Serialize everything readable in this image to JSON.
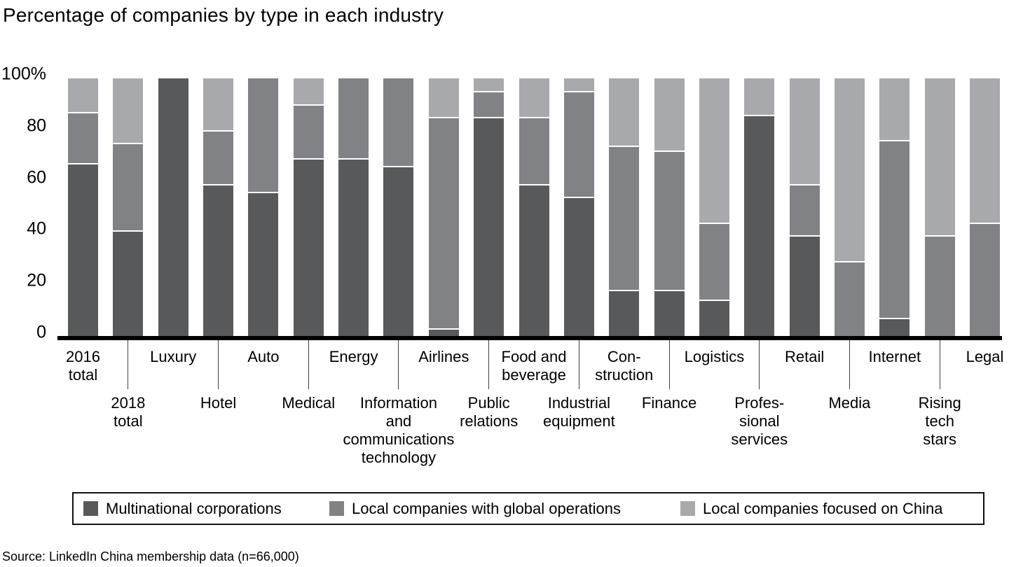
{
  "title": "Percentage of companies by type in each industry",
  "source": "Source: LinkedIn China membership data (n=66,000)",
  "y_axis": {
    "ticks": [
      100,
      80,
      60,
      40,
      20,
      0
    ],
    "tick_labels": [
      "100%",
      "80",
      "60",
      "40",
      "20",
      "0"
    ]
  },
  "legend": [
    {
      "label": "Multinational corporations",
      "color": "#58595b"
    },
    {
      "label": "Local companies with global operations",
      "color": "#808285"
    },
    {
      "label": "Local companies focused on China",
      "color": "#a7a9ac"
    }
  ],
  "chart_data": {
    "type": "bar",
    "stacked": true,
    "unit": "%",
    "title": "Percentage of companies by type in each industry",
    "ylim": [
      0,
      100
    ],
    "grid": false,
    "legend_position": "bottom",
    "categories": [
      "2016 total",
      "2018 total",
      "Luxury",
      "Hotel",
      "Auto",
      "Medical",
      "Energy",
      "Information and communications technology",
      "Airlines",
      "Public relations",
      "Food and beverage",
      "Industrial equipment",
      "Construction",
      "Finance",
      "Logistics",
      "Professional services",
      "Retail",
      "Media",
      "Internet",
      "Rising tech stars",
      "Legal"
    ],
    "category_label_lines": [
      [
        "2016",
        "total"
      ],
      [
        "2018",
        "total"
      ],
      [
        "Luxury"
      ],
      [
        "Hotel"
      ],
      [
        "Auto"
      ],
      [
        "Medical"
      ],
      [
        "Energy"
      ],
      [
        "Information",
        "and",
        "communications",
        "technology"
      ],
      [
        "Airlines"
      ],
      [
        "Public",
        "relations"
      ],
      [
        "Food and",
        "beverage"
      ],
      [
        "Industrial",
        "equipment"
      ],
      [
        "Con-",
        "struction"
      ],
      [
        "Finance"
      ],
      [
        "Logistics"
      ],
      [
        "Profes-",
        "sional",
        "services"
      ],
      [
        "Retail"
      ],
      [
        "Media"
      ],
      [
        "Internet"
      ],
      [
        "Rising",
        "tech",
        "stars"
      ],
      [
        "Legal"
      ]
    ],
    "series": [
      {
        "name": "Multinational corporations",
        "color": "#58595b",
        "values": [
          67,
          41,
          100,
          59,
          56,
          69,
          69,
          66,
          3,
          85,
          59,
          54,
          18,
          18,
          14,
          86,
          39,
          0,
          7,
          0,
          0
        ]
      },
      {
        "name": "Local companies with global operations",
        "color": "#808285",
        "values": [
          20,
          34,
          0,
          21,
          44,
          21,
          31,
          34,
          82,
          10,
          26,
          41,
          56,
          54,
          30,
          0,
          20,
          29,
          69,
          39,
          44
        ]
      },
      {
        "name": "Local companies focused on China",
        "color": "#a7a9ac",
        "values": [
          13,
          25,
          0,
          20,
          0,
          10,
          0,
          0,
          15,
          5,
          15,
          5,
          26,
          28,
          56,
          14,
          41,
          71,
          24,
          61,
          56
        ]
      }
    ]
  }
}
